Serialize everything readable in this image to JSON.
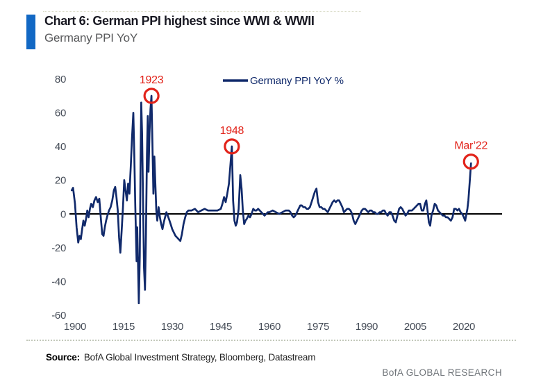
{
  "header": {
    "title": "Chart 6: German PPI highest since WWI & WWII",
    "subtitle": "Germany PPI YoY"
  },
  "footer": {
    "source_label": "Source:",
    "source_text": "BofA Global Investment Strategy, Bloomberg, Datastream",
    "brand": "BofA GLOBAL RESEARCH"
  },
  "colors": {
    "accent_blue": "#1268c4",
    "line_navy": "#112a6b",
    "annotation_red": "#e2231a",
    "zero_line": "#000000",
    "axis_label": "#454c57",
    "subtitle_gray": "#58595b",
    "brand_gray": "#6e7378"
  },
  "chart_data": {
    "type": "line",
    "title": "Germany PPI YoY",
    "xlabel": "",
    "ylabel": "",
    "grid": false,
    "zero_line": true,
    "legend": {
      "label": "Germany PPI YoY %",
      "position": "top-center"
    },
    "x_ticks": [
      1900,
      1915,
      1930,
      1945,
      1960,
      1975,
      1990,
      2005,
      2020
    ],
    "y_ticks": [
      80,
      60,
      40,
      20,
      0,
      -20,
      -40,
      -60
    ],
    "xlim": [
      1898,
      2032
    ],
    "ylim": [
      -60,
      80
    ],
    "annotations": [
      {
        "label": "1923",
        "year": 1923.6,
        "value": 70
      },
      {
        "label": "1948",
        "year": 1948.4,
        "value": 40
      },
      {
        "label": "Mar’22",
        "year": 2022.2,
        "value": 31
      }
    ],
    "series": [
      {
        "name": "Germany PPI YoY %",
        "points": [
          [
            1899,
            14
          ],
          [
            1899.4,
            15.5
          ],
          [
            1900,
            6
          ],
          [
            1900.5,
            -8
          ],
          [
            1901,
            -17
          ],
          [
            1901.4,
            -13
          ],
          [
            1901.8,
            -15
          ],
          [
            1902.2,
            -9
          ],
          [
            1902.6,
            -4
          ],
          [
            1903,
            -7
          ],
          [
            1903.4,
            -3
          ],
          [
            1903.8,
            2
          ],
          [
            1904.2,
            -2
          ],
          [
            1904.6,
            3
          ],
          [
            1905,
            6
          ],
          [
            1905.5,
            4
          ],
          [
            1906,
            8
          ],
          [
            1906.5,
            10
          ],
          [
            1907,
            7
          ],
          [
            1907.5,
            9
          ],
          [
            1908,
            -3
          ],
          [
            1908.4,
            -12
          ],
          [
            1908.8,
            -13
          ],
          [
            1909.2,
            -8
          ],
          [
            1909.6,
            -4
          ],
          [
            1910,
            -1
          ],
          [
            1910.5,
            2
          ],
          [
            1911,
            4
          ],
          [
            1911.5,
            8
          ],
          [
            1912,
            14
          ],
          [
            1912.4,
            16
          ],
          [
            1912.8,
            10
          ],
          [
            1913.2,
            2
          ],
          [
            1913.6,
            -14
          ],
          [
            1914,
            -23
          ],
          [
            1914.4,
            -10
          ],
          [
            1914.8,
            4
          ],
          [
            1915.2,
            20
          ],
          [
            1915.6,
            14
          ],
          [
            1916,
            8
          ],
          [
            1916.4,
            18
          ],
          [
            1916.8,
            12
          ],
          [
            1917.2,
            28
          ],
          [
            1917.6,
            45
          ],
          [
            1918,
            60
          ],
          [
            1918.3,
            35
          ],
          [
            1918.6,
            5
          ],
          [
            1919,
            -28
          ],
          [
            1919.2,
            -8
          ],
          [
            1919.45,
            -30
          ],
          [
            1919.7,
            -53
          ],
          [
            1920,
            -25
          ],
          [
            1920.2,
            25
          ],
          [
            1920.45,
            66
          ],
          [
            1920.7,
            48
          ],
          [
            1921,
            8
          ],
          [
            1921.3,
            -32
          ],
          [
            1921.6,
            -45
          ],
          [
            1921.9,
            -12
          ],
          [
            1922.2,
            35
          ],
          [
            1922.45,
            58
          ],
          [
            1922.7,
            25
          ],
          [
            1923,
            48
          ],
          [
            1923.3,
            62
          ],
          [
            1923.6,
            70
          ],
          [
            1923.9,
            42
          ],
          [
            1924.2,
            12
          ],
          [
            1924.5,
            34
          ],
          [
            1924.8,
            18
          ],
          [
            1925.1,
            2
          ],
          [
            1925.4,
            -4
          ],
          [
            1925.8,
            4
          ],
          [
            1926.2,
            -2
          ],
          [
            1926.6,
            -6
          ],
          [
            1927,
            -9
          ],
          [
            1927.4,
            -5
          ],
          [
            1927.8,
            -2
          ],
          [
            1928.2,
            1
          ],
          [
            1928.6,
            -1
          ],
          [
            1929,
            -3
          ],
          [
            1929.5,
            -6
          ],
          [
            1930,
            -9
          ],
          [
            1930.5,
            -11
          ],
          [
            1931,
            -13
          ],
          [
            1931.5,
            -14
          ],
          [
            1932,
            -15
          ],
          [
            1932.5,
            -16
          ],
          [
            1933,
            -12
          ],
          [
            1933.5,
            -6
          ],
          [
            1934,
            -2
          ],
          [
            1934.5,
            1
          ],
          [
            1935,
            2
          ],
          [
            1936,
            2
          ],
          [
            1937,
            3
          ],
          [
            1938,
            1
          ],
          [
            1939,
            2
          ],
          [
            1940,
            3
          ],
          [
            1941,
            2
          ],
          [
            1942,
            2
          ],
          [
            1943,
            2
          ],
          [
            1944,
            2
          ],
          [
            1945,
            3
          ],
          [
            1945.5,
            6
          ],
          [
            1946,
            10
          ],
          [
            1946.5,
            7
          ],
          [
            1947,
            12
          ],
          [
            1947.5,
            18
          ],
          [
            1948,
            30
          ],
          [
            1948.4,
            40
          ],
          [
            1948.8,
            8
          ],
          [
            1949.2,
            -4
          ],
          [
            1949.6,
            -7
          ],
          [
            1950,
            -5
          ],
          [
            1950.5,
            3
          ],
          [
            1951,
            23
          ],
          [
            1951.4,
            15
          ],
          [
            1951.8,
            2
          ],
          [
            1952.2,
            -6
          ],
          [
            1952.6,
            -4
          ],
          [
            1953,
            -3
          ],
          [
            1953.5,
            -1
          ],
          [
            1954,
            -2
          ],
          [
            1954.5,
            0
          ],
          [
            1955,
            3
          ],
          [
            1955.5,
            2
          ],
          [
            1956,
            2
          ],
          [
            1956.5,
            3
          ],
          [
            1957,
            2
          ],
          [
            1957.5,
            1
          ],
          [
            1958,
            0
          ],
          [
            1958.5,
            -1
          ],
          [
            1959,
            0
          ],
          [
            1959.5,
            1
          ],
          [
            1960,
            1
          ],
          [
            1961,
            2
          ],
          [
            1962,
            1
          ],
          [
            1963,
            0
          ],
          [
            1964,
            1
          ],
          [
            1965,
            2
          ],
          [
            1966,
            2
          ],
          [
            1966.5,
            1
          ],
          [
            1967,
            -1
          ],
          [
            1967.5,
            -2
          ],
          [
            1968,
            -1
          ],
          [
            1968.5,
            1
          ],
          [
            1969,
            3
          ],
          [
            1969.5,
            5
          ],
          [
            1970,
            5
          ],
          [
            1970.5,
            4
          ],
          [
            1971,
            4
          ],
          [
            1971.5,
            3
          ],
          [
            1972,
            3
          ],
          [
            1972.5,
            4
          ],
          [
            1973,
            7
          ],
          [
            1973.5,
            10
          ],
          [
            1974,
            13
          ],
          [
            1974.5,
            15
          ],
          [
            1975,
            7
          ],
          [
            1975.5,
            4
          ],
          [
            1976,
            4
          ],
          [
            1976.5,
            3
          ],
          [
            1977,
            3
          ],
          [
            1977.5,
            2
          ],
          [
            1978,
            1
          ],
          [
            1978.5,
            3
          ],
          [
            1979,
            5
          ],
          [
            1979.5,
            7
          ],
          [
            1980,
            8
          ],
          [
            1980.5,
            7
          ],
          [
            1981,
            8
          ],
          [
            1981.5,
            8
          ],
          [
            1982,
            6
          ],
          [
            1982.5,
            4
          ],
          [
            1983,
            1
          ],
          [
            1983.5,
            2
          ],
          [
            1984,
            3
          ],
          [
            1984.5,
            3
          ],
          [
            1985,
            2
          ],
          [
            1985.5,
            0
          ],
          [
            1986,
            -4
          ],
          [
            1986.5,
            -6
          ],
          [
            1987,
            -4
          ],
          [
            1987.5,
            -2
          ],
          [
            1988,
            0
          ],
          [
            1988.5,
            2
          ],
          [
            1989,
            3
          ],
          [
            1989.5,
            3
          ],
          [
            1990,
            2
          ],
          [
            1990.5,
            1
          ],
          [
            1991,
            2
          ],
          [
            1991.5,
            2
          ],
          [
            1992,
            1
          ],
          [
            1992.5,
            1
          ],
          [
            1993,
            0
          ],
          [
            1993.5,
            0
          ],
          [
            1994,
            1
          ],
          [
            1994.5,
            1
          ],
          [
            1995,
            2
          ],
          [
            1995.5,
            2
          ],
          [
            1996,
            0
          ],
          [
            1996.5,
            -1
          ],
          [
            1997,
            1
          ],
          [
            1997.5,
            1
          ],
          [
            1998,
            -1
          ],
          [
            1998.5,
            -4
          ],
          [
            1999,
            -5
          ],
          [
            1999.5,
            -1
          ],
          [
            2000,
            3
          ],
          [
            2000.5,
            4
          ],
          [
            2001,
            3
          ],
          [
            2001.5,
            1
          ],
          [
            2002,
            -1
          ],
          [
            2002.5,
            0
          ],
          [
            2003,
            2
          ],
          [
            2003.5,
            2
          ],
          [
            2004,
            2
          ],
          [
            2004.5,
            3
          ],
          [
            2005,
            4
          ],
          [
            2005.5,
            5
          ],
          [
            2006,
            6
          ],
          [
            2006.5,
            6
          ],
          [
            2007,
            2
          ],
          [
            2007.5,
            2
          ],
          [
            2008,
            6
          ],
          [
            2008.4,
            8
          ],
          [
            2008.8,
            2
          ],
          [
            2009.2,
            -5
          ],
          [
            2009.6,
            -7
          ],
          [
            2010,
            -1
          ],
          [
            2010.5,
            2
          ],
          [
            2011,
            6
          ],
          [
            2011.5,
            5
          ],
          [
            2012,
            2
          ],
          [
            2012.5,
            1
          ],
          [
            2013,
            0
          ],
          [
            2013.5,
            -1
          ],
          [
            2014,
            -1
          ],
          [
            2014.5,
            -2
          ],
          [
            2015,
            -2
          ],
          [
            2015.5,
            -3
          ],
          [
            2016,
            -4
          ],
          [
            2016.5,
            -2
          ],
          [
            2017,
            3
          ],
          [
            2017.5,
            3
          ],
          [
            2018,
            2
          ],
          [
            2018.5,
            3
          ],
          [
            2019,
            1
          ],
          [
            2019.5,
            0
          ],
          [
            2020,
            -2
          ],
          [
            2020.4,
            -4
          ],
          [
            2020.8,
            0
          ],
          [
            2021.1,
            3
          ],
          [
            2021.4,
            8
          ],
          [
            2021.7,
            16
          ],
          [
            2022,
            24
          ],
          [
            2022.2,
            30
          ]
        ]
      }
    ]
  }
}
